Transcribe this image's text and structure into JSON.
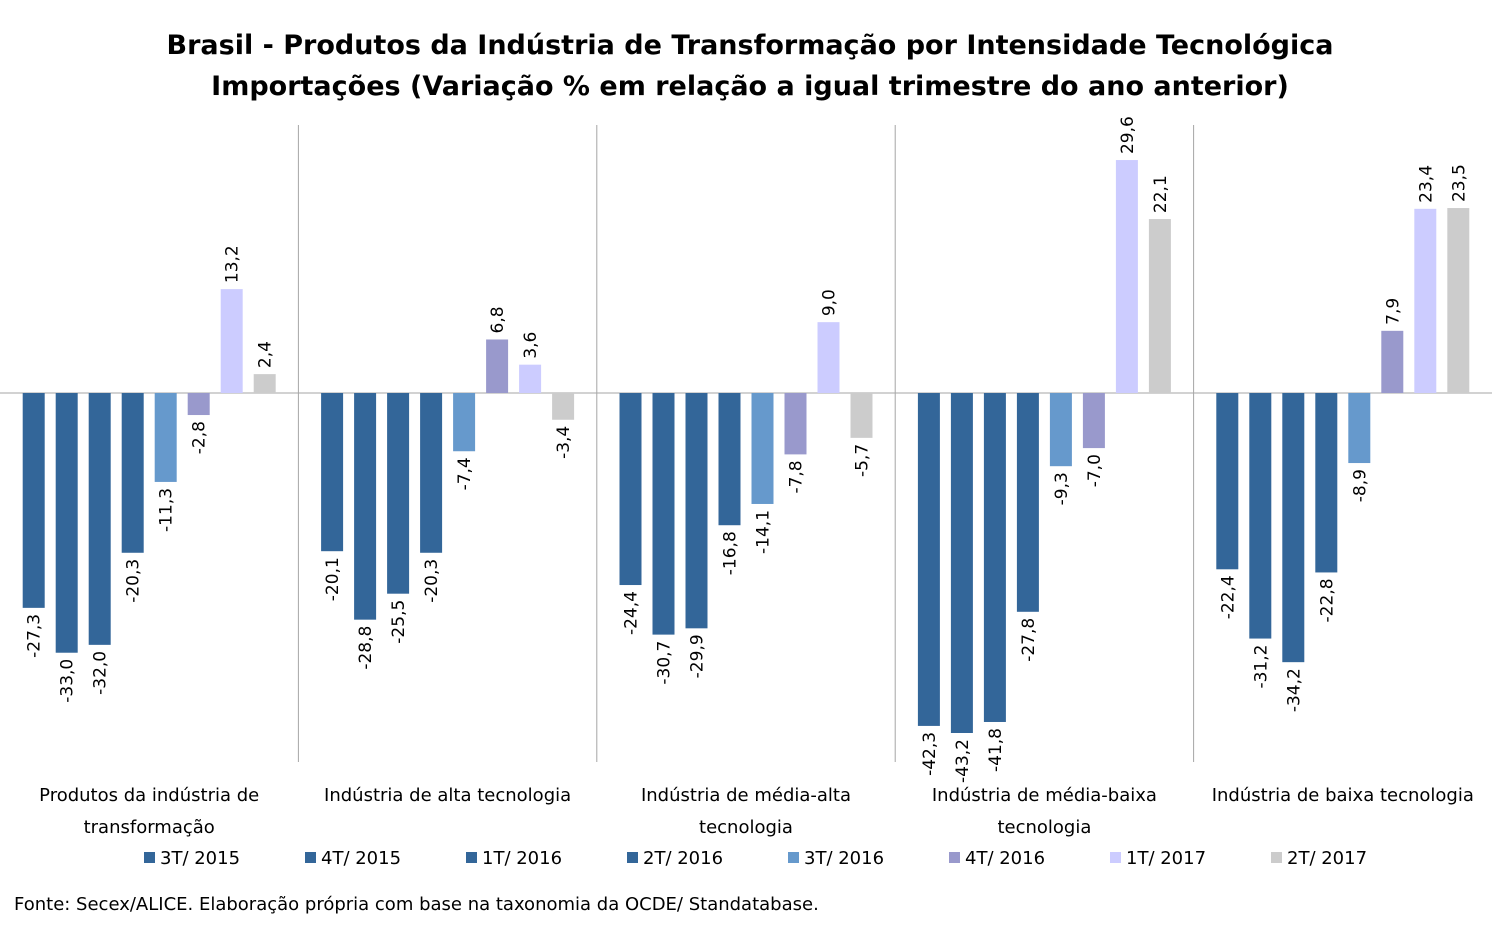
{
  "chart_data": {
    "type": "bar",
    "title_lines": [
      "Brasil - Produtos da Indústria de Transformação por Intensidade Tecnológica",
      "Importações (Variação % em relação a igual trimestre do ano anterior)"
    ],
    "categories": [
      [
        "Produtos da indústria de",
        "transformação"
      ],
      [
        "Indústria de alta tecnologia"
      ],
      [
        "Indústria de média-alta",
        "tecnologia"
      ],
      [
        "Indústria de média-baixa",
        "tecnologia"
      ],
      [
        "Indústria de baixa tecnologia"
      ]
    ],
    "series": [
      {
        "name": "3T/ 2015",
        "color": "#336699",
        "values": [
          -27.3,
          -20.1,
          -24.4,
          -42.3,
          -22.4
        ],
        "labels": [
          "-27,3",
          "-20,1",
          "-24,4",
          "-42,3",
          "-22,4"
        ]
      },
      {
        "name": "4T/ 2015",
        "color": "#336699",
        "values": [
          -33.0,
          -28.8,
          -30.7,
          -43.2,
          -31.2
        ],
        "labels": [
          "-33,0",
          "-28,8",
          "-30,7",
          "-43,2",
          "-31,2"
        ]
      },
      {
        "name": "1T/ 2016",
        "color": "#336699",
        "values": [
          -32.0,
          -25.5,
          -29.9,
          -41.8,
          -34.2
        ],
        "labels": [
          "-32,0",
          "-25,5",
          "-29,9",
          "-41,8",
          "-34,2"
        ]
      },
      {
        "name": "2T/ 2016",
        "color": "#336699",
        "values": [
          -20.3,
          -20.3,
          -16.8,
          -27.8,
          -22.8
        ],
        "labels": [
          "-20,3",
          "-20,3",
          "-16,8",
          "-27,8",
          "-22,8"
        ]
      },
      {
        "name": "3T/ 2016",
        "color": "#6699cc",
        "values": [
          -11.3,
          -7.4,
          -14.1,
          -9.3,
          -8.9
        ],
        "labels": [
          "-11,3",
          "-7,4",
          "-14,1",
          "-9,3",
          "-8,9"
        ]
      },
      {
        "name": "4T/ 2016",
        "color": "#9999cc",
        "values": [
          -2.8,
          6.8,
          -7.8,
          -7.0,
          7.9
        ],
        "labels": [
          "-2,8",
          "6,8",
          "-7,8",
          "-7,0",
          "7,9"
        ]
      },
      {
        "name": "1T/ 2017",
        "color": "#ccccff",
        "values": [
          13.2,
          3.6,
          9.0,
          29.6,
          23.4
        ],
        "labels": [
          "13,2",
          "3,6",
          "9,0",
          "29,6",
          "23,4"
        ]
      },
      {
        "name": "2T/ 2017",
        "color": "#cccccc",
        "values": [
          2.4,
          -3.4,
          -5.7,
          22.1,
          23.5
        ],
        "labels": [
          "2,4",
          "-3,4",
          "-5,7",
          "22,1",
          "23,5"
        ]
      }
    ],
    "ylim": [
      -46,
      34
    ],
    "legend_position": "bottom",
    "grid": false,
    "source": "Fonte: Secex/ALICE. Elaboração própria com base na taxonomia da OCDE/ Standatabase."
  }
}
